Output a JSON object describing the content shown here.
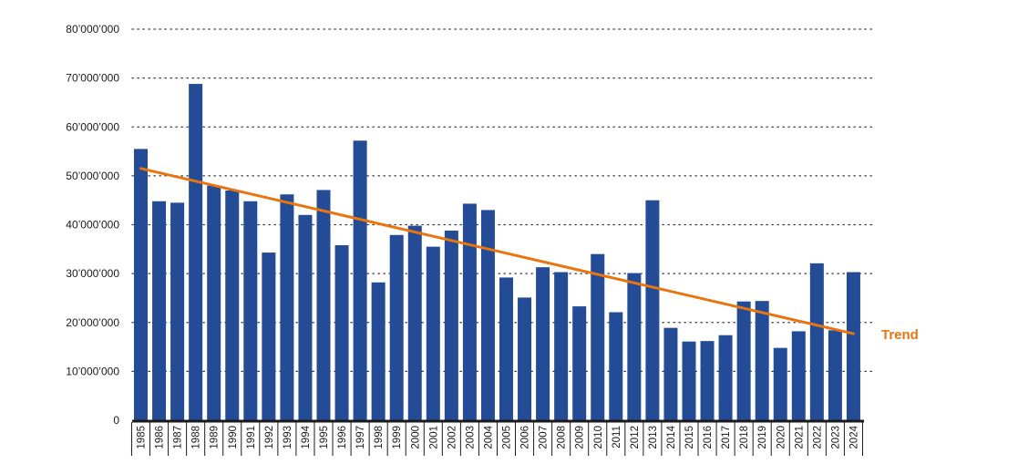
{
  "chart_data": {
    "type": "bar",
    "categories": [
      "1985",
      "1986",
      "1987",
      "1988",
      "1989",
      "1990",
      "1991",
      "1992",
      "1993",
      "1994",
      "1995",
      "1996",
      "1997",
      "1998",
      "1999",
      "2000",
      "2001",
      "2002",
      "2003",
      "2004",
      "2005",
      "2006",
      "2007",
      "2008",
      "2009",
      "2010",
      "2011",
      "2012",
      "2013",
      "2014",
      "2015",
      "2016",
      "2017",
      "2018",
      "2019",
      "2020",
      "2021",
      "2022",
      "2023",
      "2024"
    ],
    "values": [
      55500000,
      44800000,
      44500000,
      68800000,
      48000000,
      47000000,
      44800000,
      34300000,
      46200000,
      42000000,
      47100000,
      35800000,
      57200000,
      28200000,
      37900000,
      39800000,
      35500000,
      38800000,
      44300000,
      43000000,
      29200000,
      25100000,
      31300000,
      30300000,
      23300000,
      34000000,
      22100000,
      30100000,
      45000000,
      18900000,
      16100000,
      16200000,
      17400000,
      24300000,
      24400000,
      14800000,
      18200000,
      32100000,
      18400000,
      30300000
    ],
    "ylim": [
      0,
      80000000
    ],
    "yticks": [
      {
        "value": 0,
        "label": "0"
      },
      {
        "value": 10000000,
        "label": "10’000’000"
      },
      {
        "value": 20000000,
        "label": "20’000’000"
      },
      {
        "value": 30000000,
        "label": "30’000’000"
      },
      {
        "value": 40000000,
        "label": "40’000’000"
      },
      {
        "value": 50000000,
        "label": "50’000’000"
      },
      {
        "value": 60000000,
        "label": "60’000’000"
      },
      {
        "value": 70000000,
        "label": "70’000’000"
      },
      {
        "value": 80000000,
        "label": "80’000’000"
      }
    ],
    "grid": "dotted horizontal",
    "trend": {
      "label": "Trend",
      "start": 51500000,
      "end": 17700000
    },
    "title": "",
    "xlabel": "",
    "ylabel": ""
  },
  "colors": {
    "bar": "#244b96",
    "trend": "#e8750f",
    "axis": "#1a1a1a",
    "grid": "#333333"
  }
}
